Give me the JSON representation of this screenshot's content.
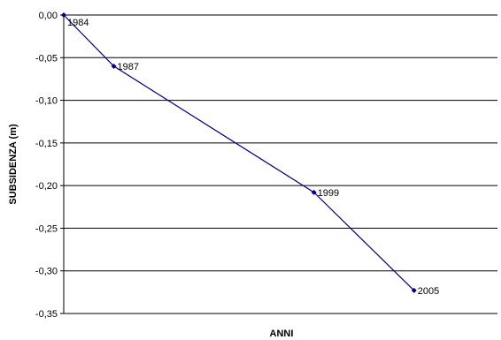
{
  "chart_data": {
    "type": "line",
    "title": "",
    "xlabel": "ANNI",
    "ylabel": "SUBSIDENZA (m)",
    "ylim": [
      -0.35,
      0.0
    ],
    "y_ticks": [
      "0,00",
      "-0,05",
      "-0,10",
      "-0,15",
      "-0,20",
      "-0,25",
      "-0,30",
      "-0,35"
    ],
    "y_tick_values": [
      0.0,
      -0.05,
      -0.1,
      -0.15,
      -0.2,
      -0.25,
      -0.3,
      -0.35
    ],
    "grid": "horizontal",
    "legend": "none",
    "series": [
      {
        "color": "#000080",
        "points": [
          {
            "x": 1984,
            "y": 0.0,
            "label": "1984"
          },
          {
            "x": 1987,
            "y": -0.06,
            "label": "1987"
          },
          {
            "x": 1999,
            "y": -0.208,
            "label": "1999"
          },
          {
            "x": 2005,
            "y": -0.323,
            "label": "2005"
          }
        ]
      }
    ],
    "xlim": [
      1984,
      2010
    ]
  }
}
